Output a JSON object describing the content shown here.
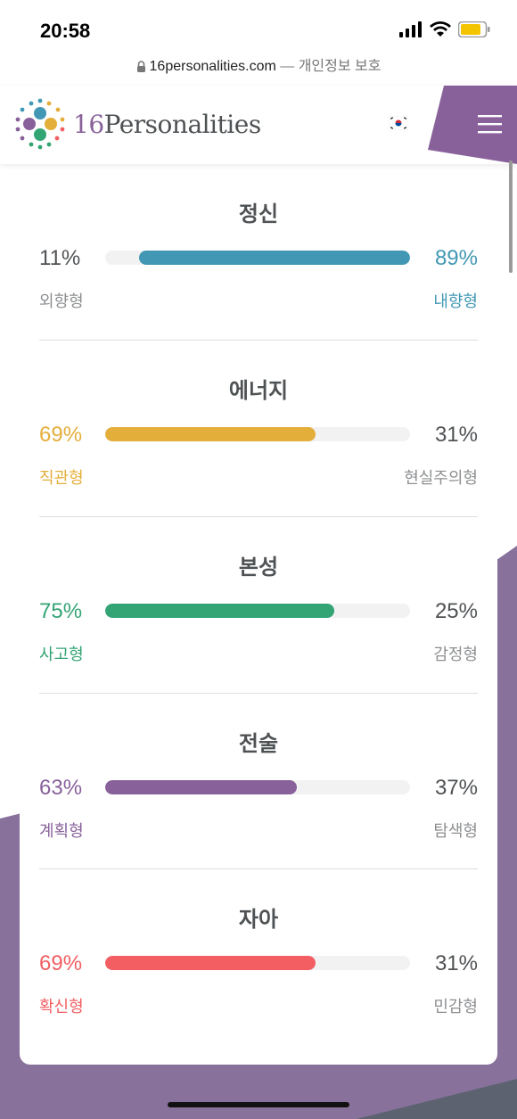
{
  "status_bar": {
    "time": "20:58"
  },
  "browser": {
    "domain": "16personalities.com",
    "suffix": " — 개인정보 보호"
  },
  "header": {
    "logo_number": "16",
    "logo_word": "Personalities",
    "flag": "korea-flag-icon",
    "menu": "hamburger-menu-icon"
  },
  "colors": {
    "purple": "#88619a",
    "blue": "#4298b4",
    "yellow": "#e4ae3a",
    "green": "#33a474",
    "red": "#f25e62",
    "text": "#4f5254",
    "muted": "#8d8f91"
  },
  "traits": [
    {
      "title": "정신",
      "left_pct": "11%",
      "right_pct": "89%",
      "left_label": "외향형",
      "right_label": "내향형",
      "dominant": "right",
      "dominant_value": 0.89,
      "color": "#4298b4"
    },
    {
      "title": "에너지",
      "left_pct": "69%",
      "right_pct": "31%",
      "left_label": "직관형",
      "right_label": "현실주의형",
      "dominant": "left",
      "dominant_value": 0.69,
      "color": "#e4ae3a"
    },
    {
      "title": "본성",
      "left_pct": "75%",
      "right_pct": "25%",
      "left_label": "사고형",
      "right_label": "감정형",
      "dominant": "left",
      "dominant_value": 0.75,
      "color": "#33a474"
    },
    {
      "title": "전술",
      "left_pct": "63%",
      "right_pct": "37%",
      "left_label": "계획형",
      "right_label": "탐색형",
      "dominant": "left",
      "dominant_value": 0.63,
      "color": "#88619a"
    },
    {
      "title": "자아",
      "left_pct": "69%",
      "right_pct": "31%",
      "left_label": "확신형",
      "right_label": "민감형",
      "dominant": "left",
      "dominant_value": 0.69,
      "color": "#f25e62"
    }
  ]
}
